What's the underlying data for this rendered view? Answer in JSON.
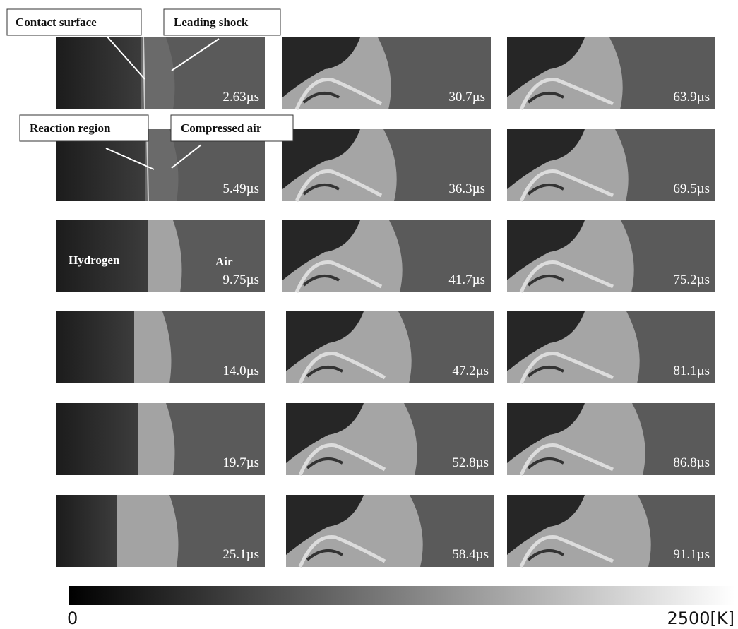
{
  "panels": [
    "2.63µs",
    "5.49µs",
    "9.75µs",
    "14.0µs",
    "19.7µs",
    "25.1µs",
    "30.7µs",
    "36.3µs",
    "41.7µs",
    "47.2µs",
    "52.8µs",
    "58.4µs",
    "63.9µs",
    "69.5µs",
    "75.2µs",
    "81.1µs",
    "86.8µs",
    "91.1µs"
  ],
  "annotations": {
    "contact_surface": "Contact surface",
    "leading_shock": "Leading shock",
    "reaction_region": "Reaction region",
    "compressed_air": "Compressed air"
  },
  "region_labels": {
    "hydrogen": "Hydrogen",
    "air": "Air"
  },
  "colorbar": {
    "min_label": "0",
    "max_label": "2500[K]"
  }
}
